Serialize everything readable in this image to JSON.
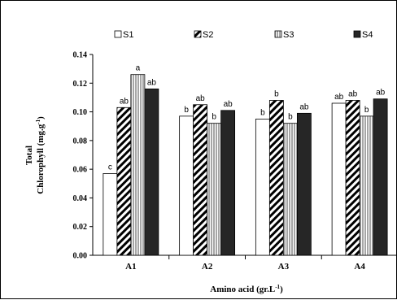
{
  "chart_data": {
    "type": "bar",
    "categories": [
      "A1",
      "A2",
      "A3",
      "A4"
    ],
    "series": [
      {
        "name": "S1",
        "values": [
          0.057,
          0.097,
          0.095,
          0.106
        ],
        "letters": [
          "c",
          "b",
          "b",
          "ab"
        ],
        "color": "#ffffff"
      },
      {
        "name": "S2",
        "values": [
          0.103,
          0.105,
          0.108,
          0.108
        ],
        "letters": [
          "ab",
          "ab",
          "b",
          "ab"
        ],
        "color": "#000000"
      },
      {
        "name": "S3",
        "values": [
          0.126,
          0.092,
          0.092,
          0.097
        ],
        "letters": [
          "a",
          "b",
          "b",
          "b"
        ],
        "color": "#b8b8b8"
      },
      {
        "name": "S4",
        "values": [
          0.116,
          0.101,
          0.099,
          0.109
        ],
        "letters": [
          "ab",
          "ab",
          "ab",
          "ab"
        ],
        "color": "#262626"
      }
    ],
    "yticks": [
      "0.00",
      "0.02",
      "0.04",
      "0.06",
      "0.08",
      "0.10",
      "0.12",
      "0.14"
    ],
    "ylim": [
      0,
      0.14
    ],
    "ylabel_line1": "Total",
    "ylabel_line2": "Chlorophyll (mg.g",
    "ylabel_sup": "-1",
    "ylabel_close": ")",
    "xlabel": "Amino acid (gr.L",
    "xlabel_sup": "-1",
    "xlabel_close": ")",
    "legend_position": "top",
    "grid": false
  }
}
